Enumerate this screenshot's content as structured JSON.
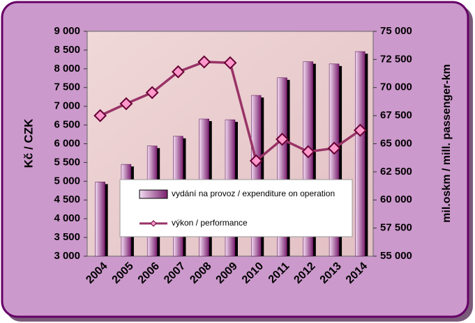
{
  "chart_data": {
    "type": "bar-line",
    "y_label": "Kč / CZK",
    "y2_label": "mil.oskm / mill. passenger-km",
    "categories": [
      "2004",
      "2005",
      "2006",
      "2007",
      "2008",
      "2009",
      "2010",
      "2011",
      "2012",
      "2013",
      "2014"
    ],
    "series": [
      {
        "name": "vydání na provoz / expenditure on operation",
        "type": "bar",
        "color": "#7a1f6e",
        "values": [
          4980,
          5450,
          5940,
          6200,
          6660,
          6640,
          7290,
          7760,
          8190,
          8130,
          8460
        ]
      },
      {
        "name": "výkon / performance",
        "type": "line",
        "axis": "y2",
        "color": "#993366",
        "marker_color": "#ff99cc",
        "values": [
          67500,
          68560,
          69550,
          71400,
          72280,
          72200,
          63480,
          65400,
          64290,
          64600,
          66200
        ]
      }
    ],
    "ylim": [
      3000,
      9000
    ],
    "yticks": [
      {
        "value": 3000,
        "label": "3 000"
      },
      {
        "value": 3500,
        "label": "3 500"
      },
      {
        "value": 4000,
        "label": "4 000"
      },
      {
        "value": 4500,
        "label": "4 500"
      },
      {
        "value": 5000,
        "label": "5 000"
      },
      {
        "value": 5500,
        "label": "5 500"
      },
      {
        "value": 6000,
        "label": "6 000"
      },
      {
        "value": 6500,
        "label": "6 500"
      },
      {
        "value": 7000,
        "label": "7 000"
      },
      {
        "value": 7500,
        "label": "7 500"
      },
      {
        "value": 8000,
        "label": "8 000"
      },
      {
        "value": 8500,
        "label": "8 500"
      },
      {
        "value": 9000,
        "label": "9 000"
      }
    ],
    "y2lim": [
      55000,
      75000
    ],
    "y2ticks": [
      {
        "value": 55000,
        "label": "55 000"
      },
      {
        "value": 57500,
        "label": "57 500"
      },
      {
        "value": 60000,
        "label": "60 000"
      },
      {
        "value": 62500,
        "label": "62 500"
      },
      {
        "value": 65000,
        "label": "65 000"
      },
      {
        "value": 67500,
        "label": "67 500"
      },
      {
        "value": 70000,
        "label": "70 000"
      },
      {
        "value": 72500,
        "label": "72 500"
      },
      {
        "value": 75000,
        "label": "75 000"
      }
    ],
    "grid": false
  }
}
